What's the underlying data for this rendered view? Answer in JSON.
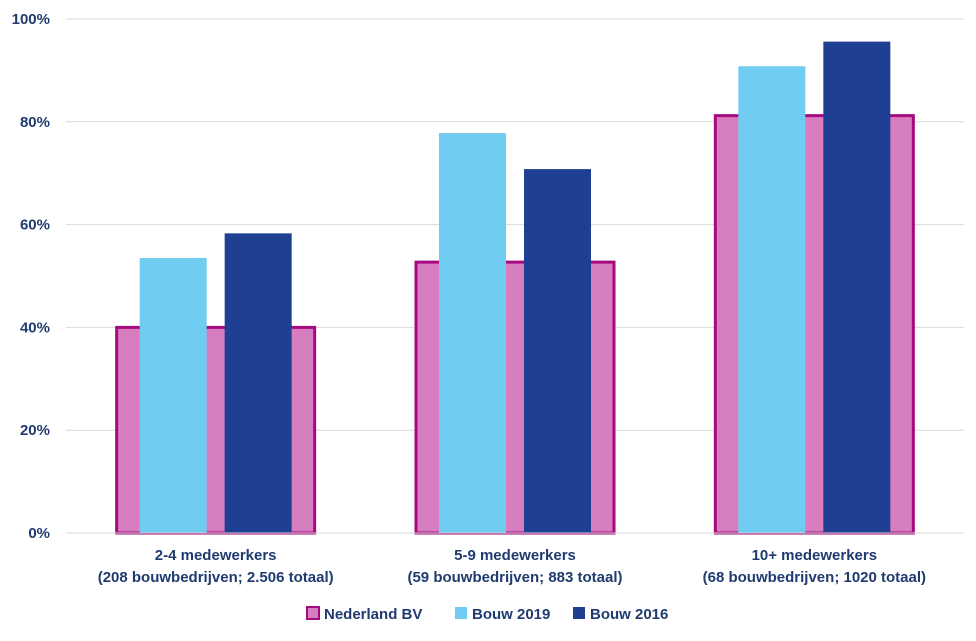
{
  "chart_data": {
    "type": "bar",
    "title": "",
    "xlabel": "",
    "ylabel": "",
    "ylim": [
      0,
      100
    ],
    "y_ticks": [
      0,
      20,
      40,
      60,
      80,
      100
    ],
    "y_tick_labels": [
      "0%",
      "20%",
      "40%",
      "60%",
      "80%",
      "100%"
    ],
    "grid": true,
    "legend_position": "bottom",
    "categories": [
      [
        "2-4 medewerkers",
        "(208 bouwbedrijven; 2.506 totaal)"
      ],
      [
        "5-9 medewerkers",
        "(59 bouwbedrijven; 883 totaal)"
      ],
      [
        "10+ medewerkers",
        "(68 bouwbedrijven; 1020 totaal)"
      ]
    ],
    "background_series": {
      "name": "Nederland BV",
      "values": [
        40,
        52.7,
        81.2
      ],
      "fill": "#d67ec0",
      "stroke": "#a50a7f"
    },
    "series": [
      {
        "name": "Bouw 2019",
        "values": [
          53.5,
          77.8,
          90.8
        ],
        "color": "#70ccf0"
      },
      {
        "name": "Bouw 2016",
        "values": [
          58.3,
          70.8,
          95.6
        ],
        "color": "#1f3f93"
      }
    ]
  }
}
